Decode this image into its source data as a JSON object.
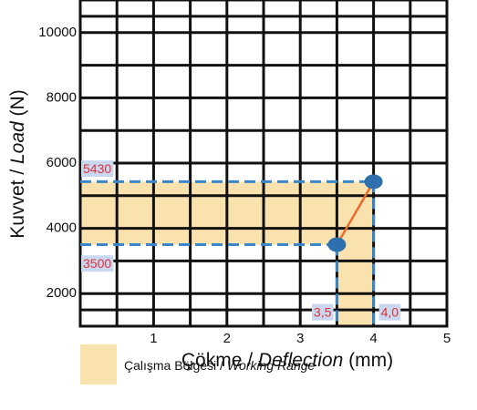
{
  "chart_data": {
    "type": "range",
    "x_label": [
      "Çökme / ",
      "Deflection",
      " (mm)"
    ],
    "y_label": [
      "Kuvvet / ",
      "Load",
      " (N)"
    ],
    "xlim": [
      0,
      5
    ],
    "ylim": [
      1000,
      11000
    ],
    "xticks": [
      1,
      2,
      3,
      4,
      5
    ],
    "yticks": [
      2000,
      4000,
      6000,
      8000,
      10000
    ],
    "grid": true,
    "series": [
      {
        "name": [
          "Çalışma Bölgesi / ",
          "Working Range"
        ],
        "color": "#f9e2ad",
        "x": [
          3.5,
          4.0
        ],
        "x_labels": [
          "3,5",
          "4,0"
        ],
        "values": [
          3500,
          5430
        ],
        "line_color": "#ef6a2a",
        "marker_color": "#2e6fad",
        "dash_color": "#3b86c8"
      }
    ]
  }
}
